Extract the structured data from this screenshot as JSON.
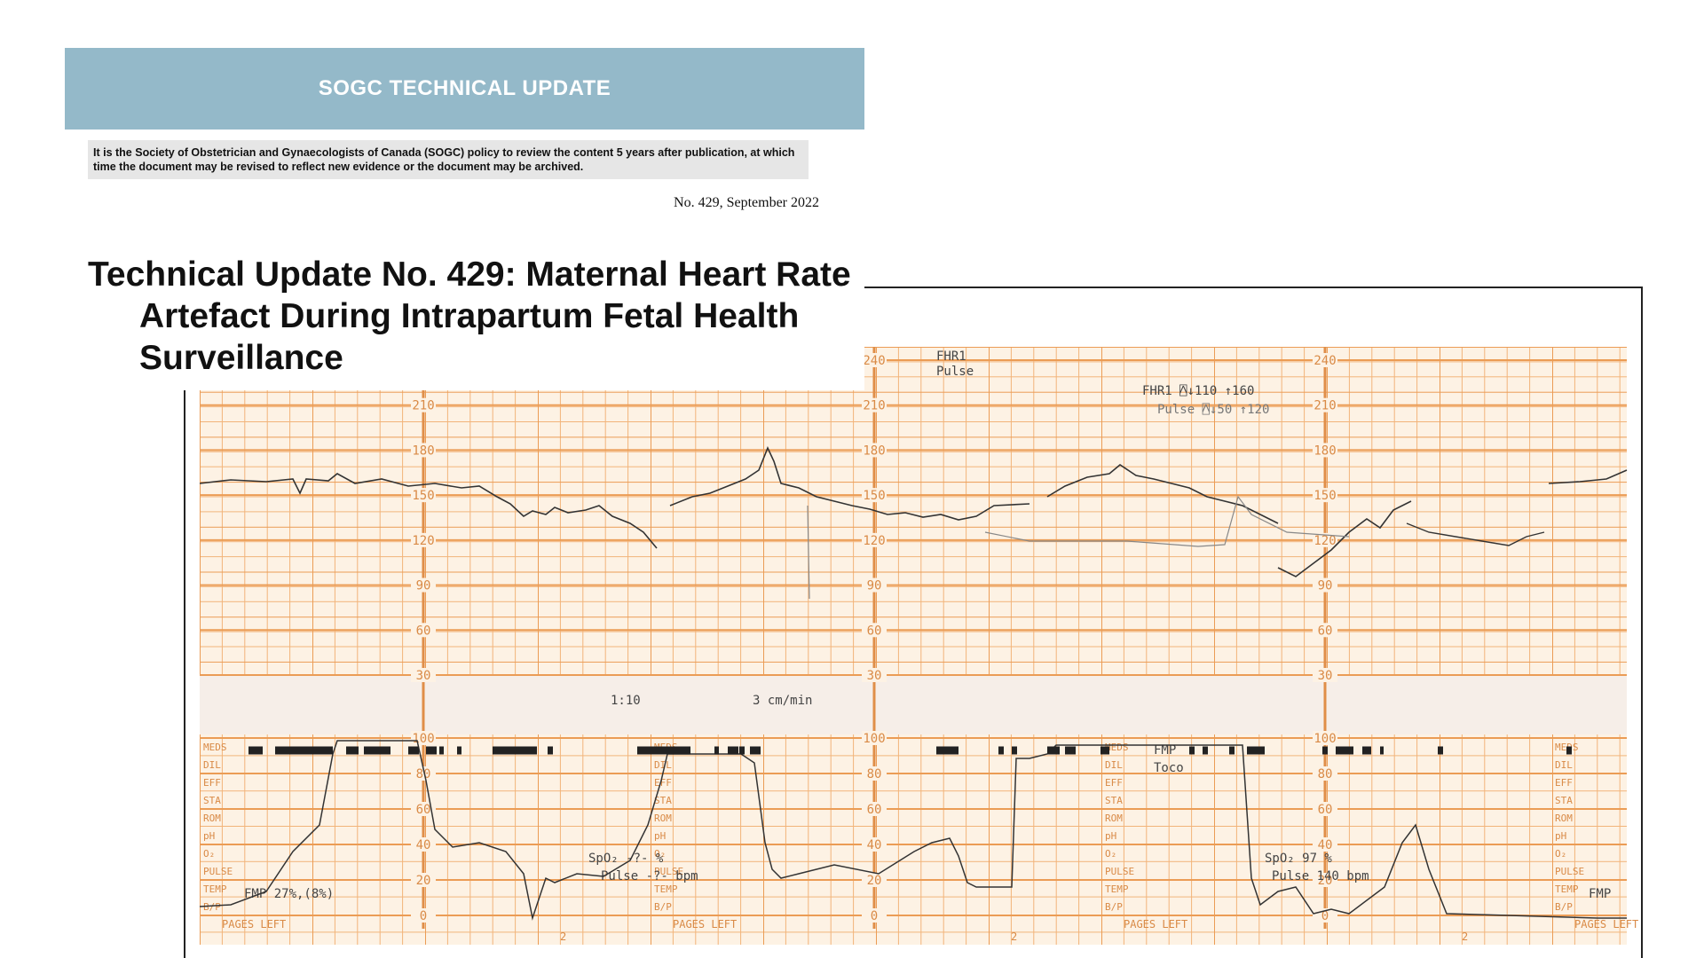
{
  "header": {
    "title": "SOGC TECHNICAL UPDATE",
    "notice": "It is the Society of Obstetrician and Gynaecologists of Canada (SOGC) policy to review the content 5 years after publication, at which time the document may be revised to reflect new evidence or the document may be archived.",
    "issue": "No. 429, September 2022"
  },
  "title": "Technical Update No. 429: Maternal Heart Rate Artefact During Intrapartum Fetal Health Surveillance",
  "figure": {
    "fhr_scale": [
      240,
      210,
      180,
      150,
      120,
      90,
      60,
      30
    ],
    "toco_scale": [
      100,
      80,
      60,
      40,
      20,
      0
    ],
    "side_labels": [
      "MEDS",
      "DIL",
      "EFF",
      "STA",
      "ROM",
      "pH",
      "O₂",
      "PULSE",
      "TEMP",
      "B/P"
    ],
    "pages_left": "PAGES LEFT",
    "page_number": "2",
    "legend_top": [
      "FHR1",
      "Pulse"
    ],
    "alarm_fhr": "FHR1 ⍓↓110 ↑160",
    "alarm_pulse": "Pulse ⍓↓50 ↑120",
    "ratio": "1:10",
    "speed": "3 cm/min",
    "legend_toco": [
      "FMP",
      "Toco"
    ],
    "spo2_left": "SpO₂ -?- %",
    "pulse_left": "Pulse -?- bpm",
    "spo2_right": "SpO₂ 97 %",
    "pulse_right": "Pulse 140 bpm",
    "fmp_left": "FMP 27%,(8%)",
    "fmp_right": "FMP"
  }
}
